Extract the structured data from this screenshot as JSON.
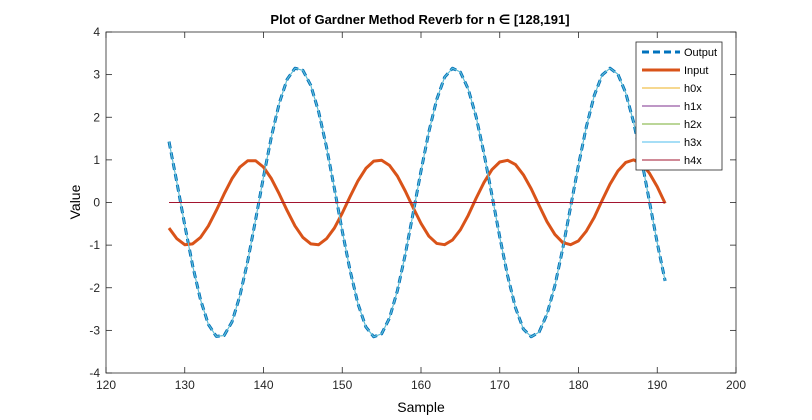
{
  "chart_data": {
    "type": "line",
    "title": "Plot of Gardner Method Reverb for n ∈ [128,191]",
    "xlabel": "Sample",
    "ylabel": "Value",
    "xlim": [
      120,
      200
    ],
    "ylim": [
      -4,
      4
    ],
    "xticks": [
      120,
      130,
      140,
      150,
      160,
      170,
      180,
      190,
      200
    ],
    "yticks": [
      -4,
      -3,
      -2,
      -1,
      0,
      1,
      2,
      3,
      4
    ],
    "grid": false,
    "legend_position": "top-right",
    "x": [
      128,
      129,
      130,
      131,
      132,
      133,
      134,
      135,
      136,
      137,
      138,
      139,
      140,
      141,
      142,
      143,
      144,
      145,
      146,
      147,
      148,
      149,
      150,
      151,
      152,
      153,
      154,
      155,
      156,
      157,
      158,
      159,
      160,
      161,
      162,
      163,
      164,
      165,
      166,
      167,
      168,
      169,
      170,
      171,
      172,
      173,
      174,
      175,
      176,
      177,
      178,
      179,
      180,
      181,
      182,
      183,
      184,
      185,
      186,
      187,
      188,
      189,
      190,
      191
    ],
    "series": [
      {
        "name": "Output",
        "color": "#0072BD",
        "style": "dashed",
        "values": [
          1.43,
          0.47,
          -0.53,
          -1.48,
          -2.28,
          -2.86,
          -3.14,
          -3.12,
          -2.8,
          -2.19,
          -1.37,
          -0.4,
          0.6,
          1.54,
          2.33,
          2.89,
          3.15,
          3.1,
          2.75,
          2.13,
          1.3,
          0.33,
          -0.67,
          -1.6,
          -2.38,
          -2.92,
          -3.15,
          -3.08,
          -2.71,
          -2.07,
          -1.22,
          -0.25,
          0.74,
          1.66,
          2.42,
          2.94,
          3.15,
          3.06,
          2.66,
          2.01,
          1.15,
          0.18,
          -0.81,
          -1.72,
          -2.47,
          -2.97,
          -3.15,
          -3.04,
          -2.62,
          -1.95,
          -1.08,
          -0.1,
          0.88,
          1.78,
          2.51,
          2.99,
          3.15,
          3.01,
          2.57,
          1.88,
          1.01,
          0.03,
          -0.95,
          -1.84
        ]
      },
      {
        "name": "Input",
        "color": "#D95319",
        "style": "solid-thick",
        "values": [
          -0.6,
          -0.85,
          -0.99,
          -0.97,
          -0.82,
          -0.55,
          -0.19,
          0.2,
          0.56,
          0.83,
          0.98,
          0.98,
          0.83,
          0.56,
          0.2,
          -0.19,
          -0.55,
          -0.82,
          -0.97,
          -0.99,
          -0.85,
          -0.6,
          -0.25,
          0.14,
          0.51,
          0.8,
          0.97,
          0.99,
          0.87,
          0.62,
          0.27,
          -0.12,
          -0.49,
          -0.79,
          -0.96,
          -0.99,
          -0.88,
          -0.64,
          -0.3,
          0.1,
          0.47,
          0.77,
          0.95,
          0.99,
          0.89,
          0.65,
          0.32,
          -0.07,
          -0.45,
          -0.75,
          -0.94,
          -0.99,
          -0.9,
          -0.67,
          -0.35,
          0.05,
          0.43,
          0.74,
          0.94,
          1.0,
          0.91,
          0.69,
          0.37,
          -0.02
        ]
      },
      {
        "name": "h0x",
        "color": "#EDB120",
        "style": "solid",
        "same_as": "Output"
      },
      {
        "name": "h1x",
        "color": "#7E2F8E",
        "style": "solid",
        "constant": 0
      },
      {
        "name": "h2x",
        "color": "#77AC30",
        "style": "solid",
        "constant": 0
      },
      {
        "name": "h3x",
        "color": "#4DBEEE",
        "style": "solid",
        "same_as": "Output"
      },
      {
        "name": "h4x",
        "color": "#A2142F",
        "style": "solid",
        "constant": 0
      }
    ]
  }
}
